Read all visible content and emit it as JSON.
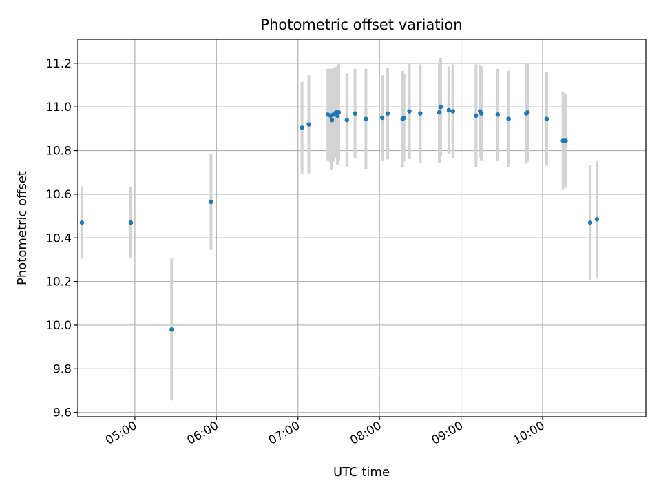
{
  "chart_data": {
    "type": "scatter",
    "title": "Photometric offset variation",
    "xlabel": "UTC time",
    "ylabel": "Photometric offset",
    "x_ticks": [
      "05:00",
      "06:00",
      "07:00",
      "08:00",
      "09:00",
      "10:00"
    ],
    "y_ticks": [
      "9.6",
      "9.8",
      "10.0",
      "10.2",
      "10.4",
      "10.6",
      "10.8",
      "11.0",
      "11.2"
    ],
    "xlim": [
      "04:18",
      "11:16"
    ],
    "ylim": [
      9.58,
      11.31
    ],
    "grid": true,
    "colors": {
      "point": "#1f77b4",
      "errorbar": "#d3d3d3",
      "grid": "#b0b0b0"
    },
    "points": [
      {
        "t": "04:21",
        "y": 10.47,
        "err": 0.165
      },
      {
        "t": "04:57",
        "y": 10.47,
        "err": 0.165
      },
      {
        "t": "05:27",
        "y": 9.98,
        "err": 0.325
      },
      {
        "t": "05:56",
        "y": 10.565,
        "err": 0.22
      },
      {
        "t": "07:03",
        "y": 10.905,
        "err": 0.21
      },
      {
        "t": "07:08",
        "y": 10.92,
        "err": 0.225
      },
      {
        "t": "07:22",
        "y": 10.965,
        "err": 0.21
      },
      {
        "t": "07:24",
        "y": 10.96,
        "err": 0.215
      },
      {
        "t": "07:25",
        "y": 10.94,
        "err": 0.23
      },
      {
        "t": "07:26",
        "y": 10.965,
        "err": 0.215
      },
      {
        "t": "07:28",
        "y": 10.975,
        "err": 0.21
      },
      {
        "t": "07:29",
        "y": 10.96,
        "err": 0.225
      },
      {
        "t": "07:30",
        "y": 10.975,
        "err": 0.22
      },
      {
        "t": "07:36",
        "y": 10.94,
        "err": 0.215
      },
      {
        "t": "07:42",
        "y": 10.97,
        "err": 0.205
      },
      {
        "t": "07:50",
        "y": 10.945,
        "err": 0.23
      },
      {
        "t": "08:02",
        "y": 10.95,
        "err": 0.195
      },
      {
        "t": "08:06",
        "y": 10.97,
        "err": 0.21
      },
      {
        "t": "08:17",
        "y": 10.945,
        "err": 0.22
      },
      {
        "t": "08:18",
        "y": 10.95,
        "err": 0.2
      },
      {
        "t": "08:22",
        "y": 10.98,
        "err": 0.22
      },
      {
        "t": "08:30",
        "y": 10.97,
        "err": 0.225
      },
      {
        "t": "08:44",
        "y": 10.975,
        "err": 0.23
      },
      {
        "t": "08:45",
        "y": 11.0,
        "err": 0.225
      },
      {
        "t": "08:51",
        "y": 10.985,
        "err": 0.2
      },
      {
        "t": "08:54",
        "y": 10.98,
        "err": 0.215
      },
      {
        "t": "09:11",
        "y": 10.96,
        "err": 0.235
      },
      {
        "t": "09:14",
        "y": 10.98,
        "err": 0.21
      },
      {
        "t": "09:15",
        "y": 10.97,
        "err": 0.215
      },
      {
        "t": "09:27",
        "y": 10.965,
        "err": 0.21
      },
      {
        "t": "09:35",
        "y": 10.945,
        "err": 0.22
      },
      {
        "t": "09:48",
        "y": 10.97,
        "err": 0.23
      },
      {
        "t": "09:49",
        "y": 10.975,
        "err": 0.225
      },
      {
        "t": "10:03",
        "y": 10.945,
        "err": 0.215
      },
      {
        "t": "10:15",
        "y": 10.845,
        "err": 0.225
      },
      {
        "t": "10:17",
        "y": 10.845,
        "err": 0.215
      },
      {
        "t": "10:35",
        "y": 10.47,
        "err": 0.265
      },
      {
        "t": "10:40",
        "y": 10.485,
        "err": 0.27
      }
    ]
  }
}
